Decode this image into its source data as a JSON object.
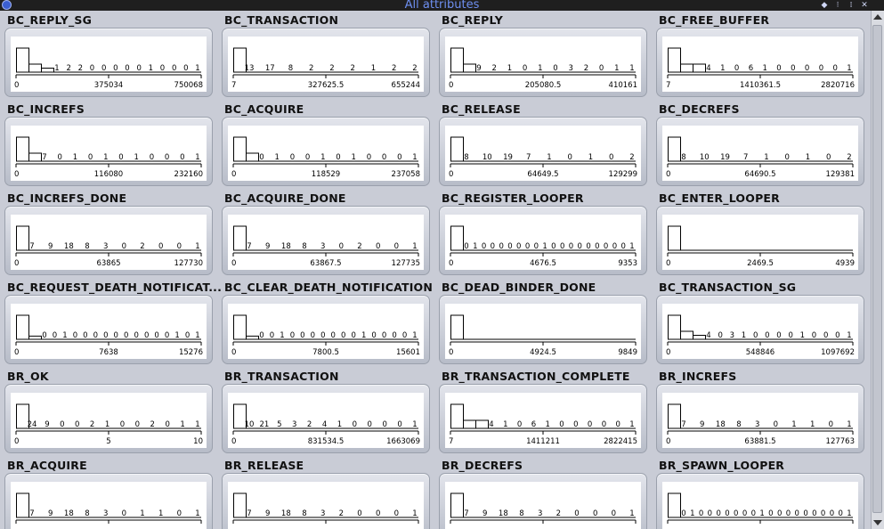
{
  "window": {
    "title": "All attributes"
  },
  "charts": [
    {
      "label": "BC_REPLY_SG",
      "counts": [
        "1",
        "2",
        "2",
        "0",
        "0",
        "0",
        "0",
        "0",
        "1",
        "0",
        "0",
        "0",
        "1"
      ],
      "ticks": [
        "0",
        "375034",
        "750068"
      ],
      "bars": [
        3,
        1,
        0.5
      ]
    },
    {
      "label": "BC_TRANSACTION",
      "counts": [
        "13",
        "17",
        "8",
        "2",
        "2",
        "2",
        "1",
        "2",
        "2"
      ],
      "ticks": [
        "7",
        "327625.5",
        "655244"
      ],
      "bars": [
        3
      ]
    },
    {
      "label": "BC_REPLY",
      "counts": [
        "9",
        "2",
        "1",
        "0",
        "1",
        "0",
        "3",
        "2",
        "0",
        "1",
        "1"
      ],
      "ticks": [
        "0",
        "205080.5",
        "410161"
      ],
      "bars": [
        3,
        1
      ]
    },
    {
      "label": "BC_FREE_BUFFER",
      "counts": [
        "4",
        "1",
        "0",
        "6",
        "1",
        "0",
        "0",
        "0",
        "0",
        "0",
        "1"
      ],
      "ticks": [
        "7",
        "1410361.5",
        "2820716"
      ],
      "bars": [
        3,
        1,
        1
      ]
    },
    {
      "label": "BC_INCREFS",
      "counts": [
        "7",
        "0",
        "1",
        "0",
        "1",
        "0",
        "1",
        "0",
        "0",
        "0",
        "1"
      ],
      "ticks": [
        "0",
        "116080",
        "232160"
      ],
      "bars": [
        3,
        1
      ]
    },
    {
      "label": "BC_ACQUIRE",
      "counts": [
        "0",
        "1",
        "0",
        "0",
        "1",
        "0",
        "1",
        "0",
        "0",
        "0",
        "1"
      ],
      "ticks": [
        "0",
        "118529",
        "237058"
      ],
      "bars": [
        3,
        1
      ]
    },
    {
      "label": "BC_RELEASE",
      "counts": [
        "8",
        "10",
        "19",
        "7",
        "1",
        "0",
        "1",
        "0",
        "2"
      ],
      "ticks": [
        "0",
        "64649.5",
        "129299"
      ],
      "bars": [
        3
      ]
    },
    {
      "label": "BC_DECREFS",
      "counts": [
        "8",
        "10",
        "19",
        "7",
        "1",
        "0",
        "1",
        "0",
        "2"
      ],
      "ticks": [
        "0",
        "64690.5",
        "129381"
      ],
      "bars": [
        3
      ]
    },
    {
      "label": "BC_INCREFS_DONE",
      "counts": [
        "7",
        "9",
        "18",
        "8",
        "3",
        "0",
        "2",
        "0",
        "0",
        "1"
      ],
      "ticks": [
        "0",
        "63865",
        "127730"
      ],
      "bars": [
        3
      ]
    },
    {
      "label": "BC_ACQUIRE_DONE",
      "counts": [
        "7",
        "9",
        "18",
        "8",
        "3",
        "0",
        "2",
        "0",
        "0",
        "1"
      ],
      "ticks": [
        "0",
        "63867.5",
        "127735"
      ],
      "bars": [
        3
      ]
    },
    {
      "label": "BC_REGISTER_LOOPER",
      "counts": [
        "0",
        "1",
        "0",
        "0",
        "0",
        "0",
        "0",
        "0",
        "0",
        "1",
        "0",
        "0",
        "0",
        "0",
        "0",
        "0",
        "0",
        "0",
        "0",
        "1"
      ],
      "ticks": [
        "0",
        "4676.5",
        "9353"
      ],
      "bars": [
        3
      ]
    },
    {
      "label": "BC_ENTER_LOOPER",
      "counts": [],
      "ticks": [
        "0",
        "2469.5",
        "4939"
      ],
      "bars": [
        3
      ]
    },
    {
      "label": "BC_REQUEST_DEATH_NOTIFICAT...",
      "counts": [
        "0",
        "0",
        "1",
        "0",
        "0",
        "0",
        "0",
        "0",
        "0",
        "0",
        "0",
        "0",
        "0",
        "1",
        "0",
        "1"
      ],
      "ticks": [
        "0",
        "7638",
        "15276"
      ],
      "bars": [
        3,
        0.4
      ]
    },
    {
      "label": "BC_CLEAR_DEATH_NOTIFICATION",
      "counts": [
        "0",
        "0",
        "1",
        "0",
        "0",
        "0",
        "0",
        "0",
        "0",
        "0",
        "1",
        "0",
        "0",
        "0",
        "0",
        "1"
      ],
      "ticks": [
        "0",
        "7800.5",
        "15601"
      ],
      "bars": [
        3,
        0.4
      ]
    },
    {
      "label": "BC_DEAD_BINDER_DONE",
      "counts": [],
      "ticks": [
        "0",
        "4924.5",
        "9849"
      ],
      "bars": [
        3
      ]
    },
    {
      "label": "BC_TRANSACTION_SG",
      "counts": [
        "4",
        "0",
        "3",
        "1",
        "0",
        "0",
        "0",
        "0",
        "1",
        "0",
        "0",
        "0",
        "1"
      ],
      "ticks": [
        "0",
        "548846",
        "1097692"
      ],
      "bars": [
        3,
        1,
        0.5
      ]
    },
    {
      "label": "BR_OK",
      "counts": [
        "24",
        "9",
        "0",
        "0",
        "2",
        "1",
        "0",
        "0",
        "2",
        "0",
        "1",
        "1"
      ],
      "ticks": [
        "0",
        "5",
        "10"
      ],
      "bars": [
        3
      ]
    },
    {
      "label": "BR_TRANSACTION",
      "counts": [
        "10",
        "21",
        "5",
        "3",
        "2",
        "4",
        "1",
        "0",
        "0",
        "0",
        "0",
        "1"
      ],
      "ticks": [
        "0",
        "831534.5",
        "1663069"
      ],
      "bars": [
        3
      ]
    },
    {
      "label": "BR_TRANSACTION_COMPLETE",
      "counts": [
        "4",
        "1",
        "0",
        "6",
        "1",
        "0",
        "0",
        "0",
        "0",
        "0",
        "1"
      ],
      "ticks": [
        "7",
        "1411211",
        "2822415"
      ],
      "bars": [
        3,
        1,
        1
      ]
    },
    {
      "label": "BR_INCREFS",
      "counts": [
        "7",
        "9",
        "18",
        "8",
        "3",
        "0",
        "1",
        "1",
        "0",
        "1"
      ],
      "ticks": [
        "0",
        "63881.5",
        "127763"
      ],
      "bars": [
        3
      ]
    },
    {
      "label": "BR_ACQUIRE",
      "counts": [
        "7",
        "9",
        "18",
        "8",
        "3",
        "0",
        "1",
        "1",
        "0",
        "1"
      ],
      "ticks": [],
      "bars": [
        3
      ]
    },
    {
      "label": "BR_RELEASE",
      "counts": [
        "7",
        "9",
        "18",
        "8",
        "3",
        "2",
        "0",
        "0",
        "0",
        "1"
      ],
      "ticks": [],
      "bars": [
        3
      ]
    },
    {
      "label": "BR_DECREFS",
      "counts": [
        "7",
        "9",
        "18",
        "8",
        "3",
        "2",
        "0",
        "0",
        "0",
        "1"
      ],
      "ticks": [],
      "bars": [
        3
      ]
    },
    {
      "label": "BR_SPAWN_LOOPER",
      "counts": [
        "0",
        "1",
        "0",
        "0",
        "0",
        "0",
        "0",
        "0",
        "0",
        "1",
        "0",
        "0",
        "0",
        "0",
        "0",
        "0",
        "0",
        "0",
        "0",
        "1"
      ],
      "ticks": [],
      "bars": [
        3
      ]
    }
  ]
}
